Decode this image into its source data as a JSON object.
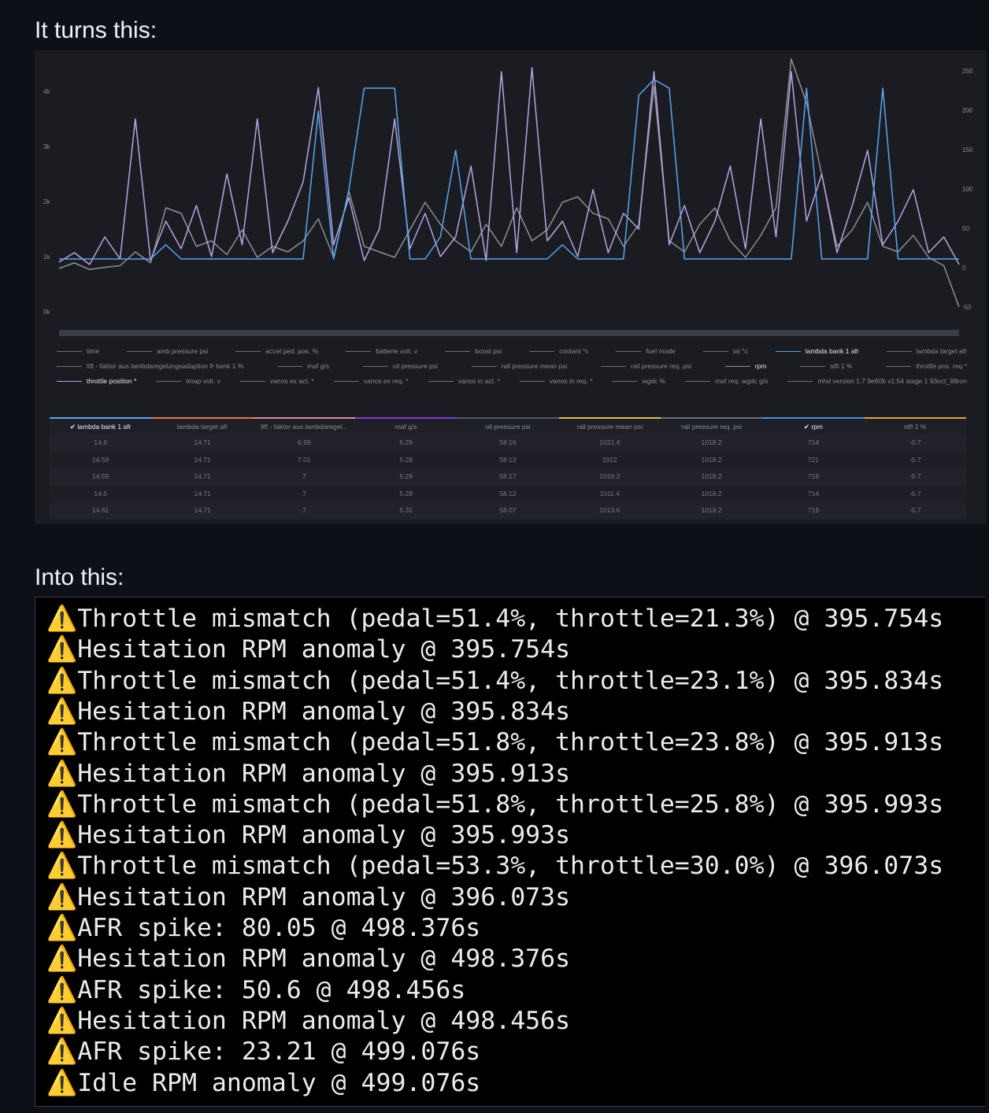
{
  "heading_before": "It turns this:",
  "chart_data": {
    "type": "line",
    "ylim": [
      0,
      4600
    ],
    "yticks": [
      {
        "value": 0,
        "label": "0k"
      },
      {
        "value": 1000,
        "label": "1k"
      },
      {
        "value": 2000,
        "label": "2k"
      },
      {
        "value": 3000,
        "label": "3k"
      },
      {
        "value": 4000,
        "label": "4k"
      }
    ],
    "y2lim": [
      -56,
      266
    ],
    "y2ticks": [
      -50,
      0,
      50,
      100,
      150,
      200,
      250
    ],
    "series": [
      {
        "name": "rpm",
        "color": "#8e9098",
        "values": [
          800,
          900,
          780,
          820,
          850,
          1100,
          900,
          1900,
          1800,
          1200,
          1300,
          1050,
          1500,
          1000,
          1200,
          1100,
          1300,
          1700,
          1000,
          2200,
          1200,
          1100,
          1000,
          1500,
          2000,
          1600,
          1300,
          1100,
          1600,
          1200,
          1900,
          1300,
          1500,
          2000,
          2100,
          1800,
          1700,
          1200,
          1600,
          4100,
          1300,
          1100,
          1600,
          1900,
          1300,
          1000,
          1400,
          1900,
          4600,
          3800,
          2500,
          1200,
          1500,
          2000,
          1200,
          1100,
          1400,
          1000,
          850,
          100
        ]
      },
      {
        "name": "throttle position *",
        "color": "#b9a3e3",
        "axis": "y2",
        "values": [
          8,
          20,
          5,
          40,
          12,
          190,
          10,
          60,
          25,
          80,
          15,
          120,
          30,
          190,
          20,
          60,
          110,
          230,
          30,
          90,
          10,
          50,
          190,
          25,
          70,
          15,
          40,
          130,
          10,
          250,
          20,
          255,
          35,
          60,
          15,
          100,
          20,
          70,
          50,
          250,
          30,
          80,
          20,
          60,
          130,
          25,
          190,
          40,
          250,
          60,
          120,
          20,
          80,
          150,
          30,
          60,
          100,
          20,
          40,
          5
        ]
      },
      {
        "name": "lambda bank 1 afr",
        "color": "#5aa7f0",
        "axis": "y2",
        "values": [
          12,
          12,
          12,
          12,
          12,
          12,
          12,
          30,
          12,
          12,
          12,
          12,
          12,
          12,
          12,
          12,
          12,
          200,
          12,
          100,
          229,
          229,
          229,
          12,
          12,
          40,
          150,
          12,
          12,
          12,
          12,
          12,
          12,
          30,
          12,
          12,
          12,
          12,
          220,
          240,
          229,
          12,
          12,
          12,
          12,
          12,
          12,
          12,
          12,
          229,
          12,
          12,
          12,
          12,
          229,
          12,
          12,
          12,
          12,
          12
        ]
      }
    ]
  },
  "legend": [
    [
      {
        "name": "time",
        "color": "#6c6f76"
      },
      {
        "name": "amb pressure psi",
        "color": "#6c6f76"
      },
      {
        "name": "accel ped. pos. %",
        "color": "#6c6f76"
      },
      {
        "name": "batterie volt. v",
        "color": "#6c6f76"
      },
      {
        "name": "boost psi",
        "color": "#6c6f76"
      },
      {
        "name": "coolant °c",
        "color": "#6c6f76"
      },
      {
        "name": "fuel mode",
        "color": "#6c6f76"
      },
      {
        "name": "iat °c",
        "color": "#6c6f76"
      },
      {
        "name": "lambda bank 1 afr",
        "color": "#5aa7f0"
      },
      {
        "name": "lambda target afr",
        "color": "#6c6f76"
      }
    ],
    [
      {
        "name": "ltft - faktor aus lambdaregelungsadaption fr bank 1 %",
        "color": "#6c6f76"
      },
      {
        "name": "maf g/s",
        "color": "#6c6f76"
      },
      {
        "name": "oil pressure psi",
        "color": "#6c6f76"
      },
      {
        "name": "rail pressure mean psi",
        "color": "#6c6f76"
      },
      {
        "name": "rail pressure req. psi",
        "color": "#6c6f76"
      },
      {
        "name": "rpm",
        "color": "#8e9098"
      },
      {
        "name": "stft 1 %",
        "color": "#6c6f76"
      },
      {
        "name": "throttle pos. req *",
        "color": "#6c6f76"
      }
    ],
    [
      {
        "name": "throttle position *",
        "color": "#b9a3e3"
      },
      {
        "name": "tmap volt. v",
        "color": "#6c6f76"
      },
      {
        "name": "vanos ex act. *",
        "color": "#6c6f76"
      },
      {
        "name": "vanos ex req. *",
        "color": "#6c6f76"
      },
      {
        "name": "vanos in act. *",
        "color": "#6c6f76"
      },
      {
        "name": "vanos in req. *",
        "color": "#6c6f76"
      },
      {
        "name": "wgdc %",
        "color": "#6c6f76"
      },
      {
        "name": "maf req. wgdc g/s",
        "color": "#6c6f76"
      },
      {
        "name": "mhd version 1.7 9e60b v1.54 stage 1 93oct_98ron",
        "color": "#6c6f76"
      }
    ]
  ],
  "table": {
    "headers": [
      "✔ lambda bank 1 afr",
      "lambda target afr",
      "ltft - faktor aus lambdaregel...",
      "maf g/s",
      "oil pressure psi",
      "rail pressure mean psi",
      "rail pressure req. psi",
      "✔ rpm",
      "stft 1 %"
    ],
    "header_colors": [
      "#5aa7f0",
      "#e07b3c",
      "#d98aa0",
      "#7a3fd0",
      "#555a62",
      "#d9c25a",
      "#6a6f78",
      "#4a90e2",
      "#e0a040"
    ],
    "rows": [
      [
        "14.6",
        "14.71",
        "6.99",
        "5.28",
        "58.16",
        "1021.4",
        "1018.2",
        "714",
        "-0.7"
      ],
      [
        "14.59",
        "14.71",
        "7.01",
        "5.28",
        "58.13",
        "1012",
        "1018.2",
        "721",
        "-0.7"
      ],
      [
        "14.59",
        "14.71",
        "7",
        "5.28",
        "58.17",
        "1019.2",
        "1018.2",
        "718",
        "-0.7"
      ],
      [
        "14.6",
        "14.71",
        "7",
        "5.28",
        "58.12",
        "1011.4",
        "1018.2",
        "714",
        "-0.7"
      ],
      [
        "14.61",
        "14.71",
        "7",
        "5.31",
        "58.07",
        "1013.6",
        "1018.2",
        "719",
        "-0.7"
      ]
    ]
  },
  "heading_after": "Into this:",
  "terminal_lines": [
    "⚠️Throttle mismatch (pedal=51.4%, throttle=21.3%) @ 395.754s",
    "⚠️Hesitation RPM anomaly @ 395.754s",
    "⚠️Throttle mismatch (pedal=51.4%, throttle=23.1%) @ 395.834s",
    "⚠️Hesitation RPM anomaly @ 395.834s",
    "⚠️Throttle mismatch (pedal=51.8%, throttle=23.8%) @ 395.913s",
    "⚠️Hesitation RPM anomaly @ 395.913s",
    "⚠️Throttle mismatch (pedal=51.8%, throttle=25.8%) @ 395.993s",
    "⚠️Hesitation RPM anomaly @ 395.993s",
    "⚠️Throttle mismatch (pedal=53.3%, throttle=30.0%) @ 396.073s",
    "⚠️Hesitation RPM anomaly @ 396.073s",
    "⚠️AFR spike: 80.05 @ 498.376s",
    "⚠️Hesitation RPM anomaly @ 498.376s",
    "⚠️AFR spike: 50.6 @ 498.456s",
    "⚠️Hesitation RPM anomaly @ 498.456s",
    "⚠️AFR spike: 23.21 @ 499.076s",
    "⚠️Idle RPM anomaly @ 499.076s"
  ]
}
